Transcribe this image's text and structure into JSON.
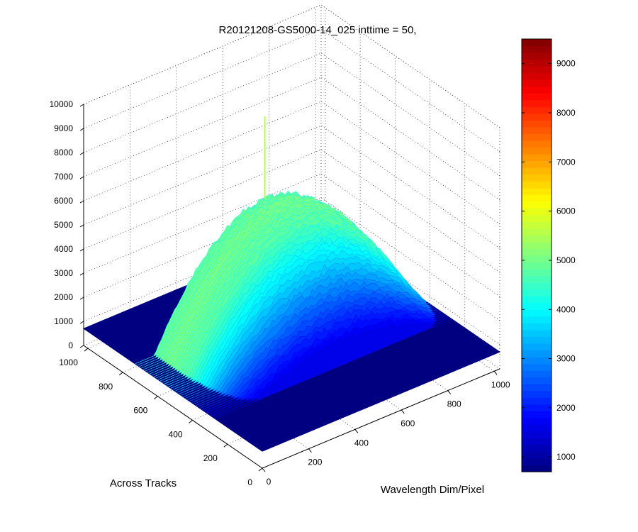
{
  "chart_data": {
    "type": "surface",
    "title": "R20121208-GS5000-14_025 inttime = 50,",
    "xlabel": "Wavelength Dim/Pixel",
    "ylabel": "Across Tracks",
    "zlabel": "",
    "xlim": [
      0,
      1024
    ],
    "ylim": [
      0,
      1024
    ],
    "zlim": [
      0,
      10000
    ],
    "x_ticks": [
      "0",
      "200",
      "400",
      "600",
      "800",
      "1000"
    ],
    "y_ticks": [
      "0",
      "200",
      "400",
      "600",
      "800",
      "1000"
    ],
    "z_ticks": [
      "0",
      "1000",
      "2000",
      "3000",
      "4000",
      "5000",
      "6000",
      "7000",
      "8000",
      "9000",
      "10000"
    ],
    "grid": true,
    "baseline": 700,
    "colormap": "jet",
    "colorbar": {
      "range": [
        700,
        9500
      ],
      "ticks": [
        "1000",
        "2000",
        "3000",
        "4000",
        "5000",
        "6000",
        "7000",
        "8000",
        "9000"
      ],
      "position": "right"
    },
    "signal_region": {
      "x_range": [
        0,
        1024
      ],
      "y_range": [
        270,
        730
      ],
      "x_peak": 560,
      "peak_values_by_y": [
        {
          "y": 270,
          "value": 1700
        },
        {
          "y": 350,
          "value": 2700
        },
        {
          "y": 450,
          "value": 4100
        },
        {
          "y": 550,
          "value": 5200
        },
        {
          "y": 650,
          "value": 5500
        },
        {
          "y": 730,
          "value": 5300
        }
      ],
      "spike": {
        "x": 560,
        "y": 730,
        "value": 8700
      }
    }
  }
}
